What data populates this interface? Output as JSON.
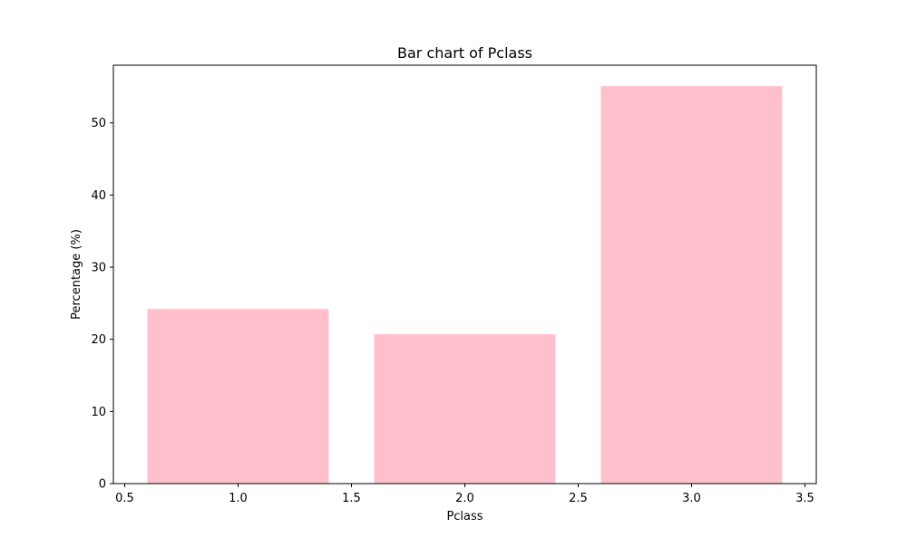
{
  "chart_data": {
    "type": "bar",
    "title": "Bar chart of Pclass",
    "xlabel": "Pclass",
    "ylabel": "Percentage (%)",
    "x": [
      1,
      2,
      3
    ],
    "values": [
      24.2,
      20.7,
      55.1
    ],
    "bar_width": 0.8,
    "xlim": [
      0.45,
      3.55
    ],
    "ylim": [
      0,
      58
    ],
    "xticks": [
      0.5,
      1.0,
      1.5,
      2.0,
      2.5,
      3.0,
      3.5
    ],
    "xtick_labels": [
      "0.5",
      "1.0",
      "1.5",
      "2.0",
      "2.5",
      "3.0",
      "3.5"
    ],
    "yticks": [
      0,
      10,
      20,
      30,
      40,
      50
    ],
    "ytick_labels": [
      "0",
      "10",
      "20",
      "30",
      "40",
      "50"
    ],
    "grid": false,
    "legend": "none",
    "bar_color": "#FFC0CB",
    "axis_color": "#000000"
  }
}
